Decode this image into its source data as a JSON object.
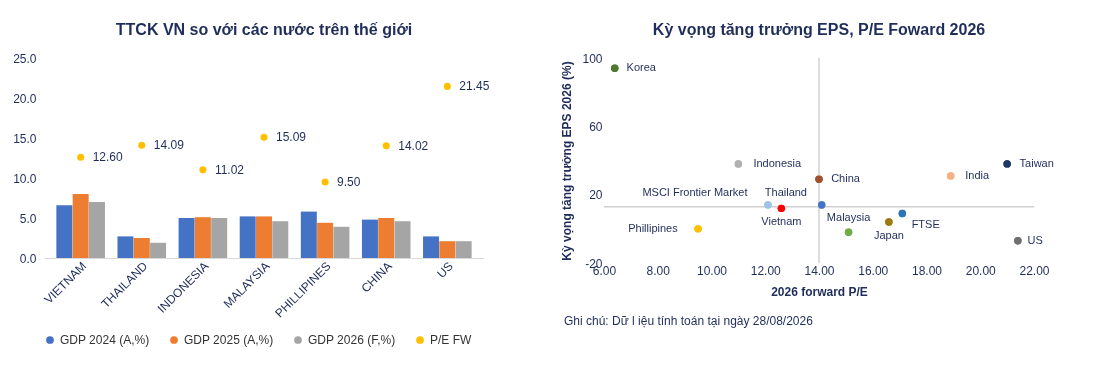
{
  "chart_data": [
    {
      "type": "bar",
      "title": "TTCK VN so với các nước trên thế giới",
      "categories": [
        "VIETNAM",
        "THAILAND",
        "INDONESIA",
        "MALAYSIA",
        "PHILLIPINES",
        "CHINA",
        "US"
      ],
      "series": [
        {
          "name": "GDP 2024 (A,%)",
          "color": "#4472c4",
          "values": [
            6.6,
            2.7,
            5.0,
            5.2,
            5.8,
            4.8,
            2.7
          ]
        },
        {
          "name": "GDP 2025 (A,%)",
          "color": "#ed7d31",
          "values": [
            8.0,
            2.5,
            5.1,
            5.2,
            4.4,
            5.0,
            2.1
          ]
        },
        {
          "name": "GDP 2026 (F,%)",
          "color": "#a5a5a5",
          "values": [
            7.0,
            1.9,
            5.0,
            4.6,
            3.9,
            4.6,
            2.1
          ]
        },
        {
          "name": "P/E FW",
          "type": "scatter",
          "color": "#ffc000",
          "values": [
            12.6,
            14.09,
            11.02,
            15.09,
            9.5,
            14.02,
            21.45
          ],
          "value_labels": [
            "12.60",
            "14.09",
            "11.02",
            "15.09",
            "9.50",
            "14.02",
            "21.45"
          ]
        }
      ],
      "ylim": [
        0,
        25
      ],
      "yticks": [
        {
          "value": 0,
          "label": "0.0"
        },
        {
          "value": 5,
          "label": "5.0"
        },
        {
          "value": 10,
          "label": "10.0"
        },
        {
          "value": 15,
          "label": "15.0"
        },
        {
          "value": 20,
          "label": "20.0"
        },
        {
          "value": 25,
          "label": "25.0"
        }
      ],
      "legend": "bottom"
    },
    {
      "type": "scatter",
      "title": "Kỳ vọng tăng trưởng EPS, P/E Foward 2026",
      "xlabel": "2026 forward P/E",
      "ylabel": "Kỳ vọng tăng trưởng EPS 2026 (%)",
      "x": [
        6.4,
        11.0,
        12.6,
        12.1,
        14.0,
        14.1,
        9.5,
        15.1,
        16.6,
        17.1,
        18.9,
        21.0,
        21.4
      ],
      "values": [
        94,
        38,
        12,
        14,
        29,
        14,
        0,
        -2,
        4,
        9,
        31,
        38,
        -7
      ],
      "colors": [
        "#4e7a2e",
        "#b0b0b0",
        "#ff0000",
        "#9dc3e6",
        "#a0522d",
        "#4472c4",
        "#ffc000",
        "#70ad47",
        "#9c7a0b",
        "#2e75b6",
        "#f4b183",
        "#203864",
        "#707070"
      ],
      "xlim": [
        6,
        22
      ],
      "xticks": [
        {
          "value": 6,
          "label": "6.00"
        },
        {
          "value": 8,
          "label": "8.00"
        },
        {
          "value": 10,
          "label": "10.00"
        },
        {
          "value": 12,
          "label": "12.00"
        },
        {
          "value": 14,
          "label": "14.00"
        },
        {
          "value": 16,
          "label": "16.00"
        },
        {
          "value": 18,
          "label": "18.00"
        },
        {
          "value": 20,
          "label": "20.00"
        },
        {
          "value": 22,
          "label": "22.00"
        }
      ],
      "ylim": [
        -20,
        100
      ],
      "yticks": [
        -20,
        20,
        60,
        100
      ],
      "ref_lines": [
        {
          "axis": "x",
          "value": 14,
          "color": "#d0d0d0"
        },
        {
          "axis": "y",
          "value": 13,
          "color": "#d0d0d0"
        }
      ],
      "annotations": [
        {
          "text": "Korea",
          "x": 6.4,
          "y": 94
        },
        {
          "text": "Indonesia",
          "x": 11.0,
          "y": 38
        },
        {
          "text": "Vietnam",
          "x": 12.6,
          "y": 12
        },
        {
          "text": "MSCI Frontier Market",
          "x": 12.1,
          "y": 14
        },
        {
          "text": "China",
          "x": 14.0,
          "y": 29
        },
        {
          "text": "Thailand",
          "x": 14.1,
          "y": 14
        },
        {
          "text": "Phillipines",
          "x": 9.5,
          "y": 0
        },
        {
          "text": "Malaysia",
          "x": 15.1,
          "y": -2
        },
        {
          "text": "Japan",
          "x": 16.6,
          "y": 4
        },
        {
          "text": "FTSE",
          "x": 17.1,
          "y": 9
        },
        {
          "text": "India",
          "x": 18.9,
          "y": 31
        },
        {
          "text": "Taiwan",
          "x": 21.0,
          "y": 38
        },
        {
          "text": "US",
          "x": 21.4,
          "y": -7
        },
        "Ghi chú: Dữ l iệu tính toán tại ngày 28/08/2026"
      ]
    }
  ]
}
